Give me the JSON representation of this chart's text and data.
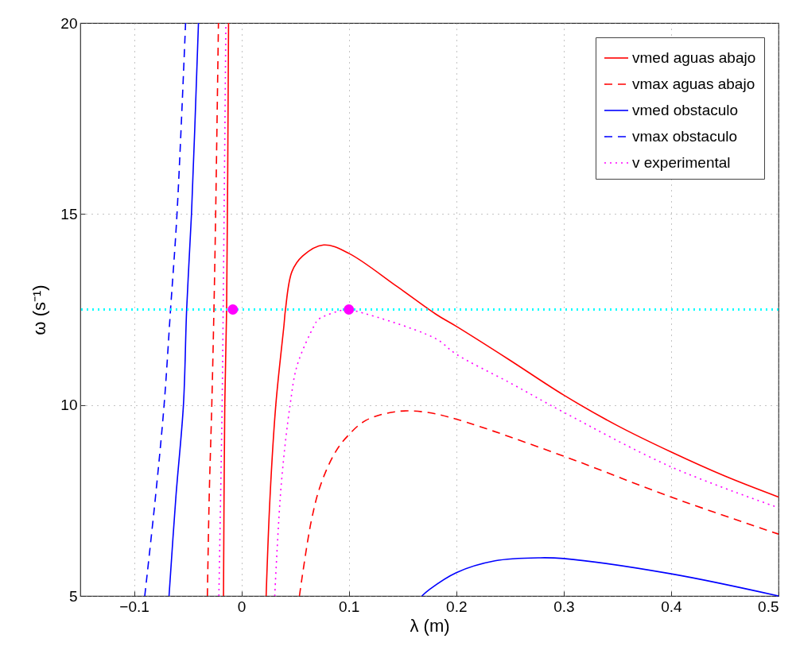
{
  "chart_data": {
    "type": "line",
    "xlabel": "λ (m)",
    "ylabel": "ω (s⁻¹)",
    "xlim": [
      -0.15,
      0.5
    ],
    "ylim": [
      5,
      20
    ],
    "xticks": [
      -0.1,
      0,
      0.1,
      0.2,
      0.3,
      0.4,
      0.5
    ],
    "yticks": [
      5,
      10,
      15,
      20
    ],
    "grid": true,
    "legend": "top right",
    "series": [
      {
        "name": "vmed aguas abajo",
        "color": "#ff0000",
        "line_style": "solid",
        "x": [
          -0.0167,
          -0.0155,
          -0.0138,
          -0.012,
          null,
          0.023,
          0.0266,
          0.032,
          0.0396,
          0.041,
          0.047,
          0.057,
          0.0765,
          0.1,
          0.145,
          0.182,
          0.2,
          0.249,
          0.3,
          0.35,
          0.4,
          0.45,
          0.5
        ],
        "values": [
          5,
          10,
          12.5,
          20,
          null,
          5,
          7.58,
          10,
          12.09,
          12.5,
          13.49,
          13.9,
          14.19,
          13.97,
          13.1,
          12.36,
          12.06,
          11.19,
          10.26,
          9.46,
          8.77,
          8.14,
          7.59
        ]
      },
      {
        "name": "vmax aguas abajo",
        "color": "#ff0000",
        "line_style": "dashed",
        "x": [
          -0.0317,
          -0.03,
          -0.0276,
          -0.0256,
          -0.024,
          -0.0214,
          null,
          0.054,
          0.065,
          0.074,
          0.0875,
          0.0986,
          0.116,
          0.145,
          0.172,
          0.2,
          0.3,
          0.4,
          0.5
        ],
        "values": [
          5,
          7.6,
          10,
          12.5,
          15,
          20,
          null,
          5,
          6.96,
          7.93,
          8.77,
          9.18,
          9.6,
          9.83,
          9.81,
          9.63,
          8.66,
          7.59,
          6.62
        ]
      },
      {
        "name": "vmed obstaculo",
        "color": "#0000ff",
        "line_style": "solid",
        "x": [
          -0.0674,
          -0.061,
          -0.054,
          -0.051,
          -0.0465,
          -0.04,
          null,
          0.168,
          0.175,
          0.2,
          0.236,
          0.278,
          0.3,
          0.4,
          0.5
        ],
        "values": [
          5,
          7.6,
          10,
          12.5,
          15,
          20,
          null,
          5,
          5.17,
          5.61,
          5.92,
          6,
          5.98,
          5.58,
          5
        ]
      },
      {
        "name": "vmax obstaculo",
        "color": "#0000ff",
        "line_style": "dashed",
        "x": [
          -0.09,
          -0.08,
          -0.072,
          -0.066,
          -0.06,
          -0.052
        ],
        "values": [
          5,
          7.6,
          10,
          12.5,
          15,
          20
        ]
      },
      {
        "name": "v experimental",
        "color": "#ff00ff",
        "line_style": "dotted",
        "x": [
          -0.021,
          -0.018,
          -0.017,
          -0.0145,
          null,
          0.031,
          0.0371,
          0.0453,
          0.052,
          0.068,
          0.0716,
          0.096,
          0.1,
          0.18,
          0.2,
          0.25,
          0.3,
          0.4,
          0.5
        ],
        "values": [
          5,
          10,
          12.5,
          20,
          null,
          5,
          7.93,
          10,
          11.05,
          12.09,
          12.24,
          12.5,
          12.5,
          11.75,
          11.33,
          10.58,
          9.81,
          8.38,
          7.31
        ]
      },
      {
        "type": "scatter",
        "color": "#ff00ff",
        "marker": "circle",
        "x": [
          -0.008,
          0.1
        ],
        "values": [
          12.5,
          12.5
        ]
      }
    ],
    "ref_lines": [
      {
        "axis": "y",
        "value": 12.5,
        "color": "#00ffff",
        "line_style": "dotted"
      }
    ]
  }
}
